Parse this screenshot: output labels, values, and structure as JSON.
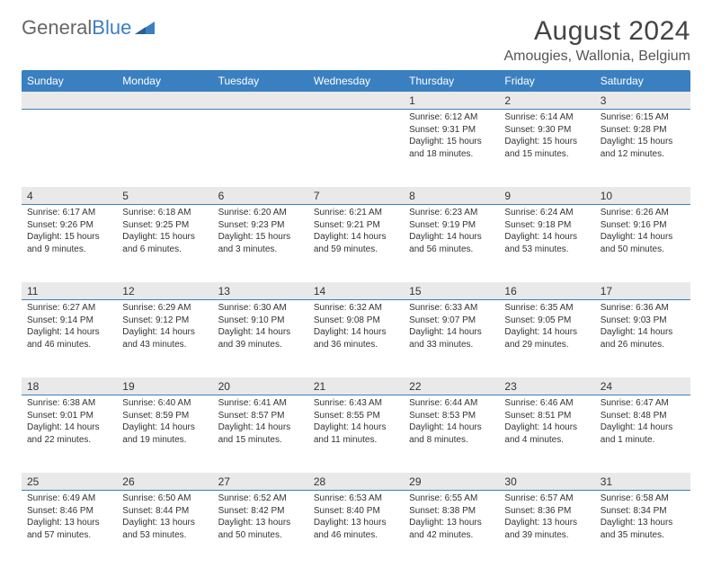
{
  "brand": {
    "general": "General",
    "blue": "Blue"
  },
  "title": "August 2024",
  "location": "Amougies, Wallonia, Belgium",
  "dayNames": [
    "Sunday",
    "Monday",
    "Tuesday",
    "Wednesday",
    "Thursday",
    "Friday",
    "Saturday"
  ],
  "colors": {
    "headerBar": "#3a80c0",
    "dayStripBg": "#e9e9e9",
    "dayStripBorder": "#3a80c0",
    "pageBg": "#ffffff",
    "text": "#333333"
  },
  "weeks": [
    [
      null,
      null,
      null,
      null,
      {
        "n": "1",
        "sunrise": "6:12 AM",
        "sunset": "9:31 PM",
        "daylight": "15 hours and 18 minutes."
      },
      {
        "n": "2",
        "sunrise": "6:14 AM",
        "sunset": "9:30 PM",
        "daylight": "15 hours and 15 minutes."
      },
      {
        "n": "3",
        "sunrise": "6:15 AM",
        "sunset": "9:28 PM",
        "daylight": "15 hours and 12 minutes."
      }
    ],
    [
      {
        "n": "4",
        "sunrise": "6:17 AM",
        "sunset": "9:26 PM",
        "daylight": "15 hours and 9 minutes."
      },
      {
        "n": "5",
        "sunrise": "6:18 AM",
        "sunset": "9:25 PM",
        "daylight": "15 hours and 6 minutes."
      },
      {
        "n": "6",
        "sunrise": "6:20 AM",
        "sunset": "9:23 PM",
        "daylight": "15 hours and 3 minutes."
      },
      {
        "n": "7",
        "sunrise": "6:21 AM",
        "sunset": "9:21 PM",
        "daylight": "14 hours and 59 minutes."
      },
      {
        "n": "8",
        "sunrise": "6:23 AM",
        "sunset": "9:19 PM",
        "daylight": "14 hours and 56 minutes."
      },
      {
        "n": "9",
        "sunrise": "6:24 AM",
        "sunset": "9:18 PM",
        "daylight": "14 hours and 53 minutes."
      },
      {
        "n": "10",
        "sunrise": "6:26 AM",
        "sunset": "9:16 PM",
        "daylight": "14 hours and 50 minutes."
      }
    ],
    [
      {
        "n": "11",
        "sunrise": "6:27 AM",
        "sunset": "9:14 PM",
        "daylight": "14 hours and 46 minutes."
      },
      {
        "n": "12",
        "sunrise": "6:29 AM",
        "sunset": "9:12 PM",
        "daylight": "14 hours and 43 minutes."
      },
      {
        "n": "13",
        "sunrise": "6:30 AM",
        "sunset": "9:10 PM",
        "daylight": "14 hours and 39 minutes."
      },
      {
        "n": "14",
        "sunrise": "6:32 AM",
        "sunset": "9:08 PM",
        "daylight": "14 hours and 36 minutes."
      },
      {
        "n": "15",
        "sunrise": "6:33 AM",
        "sunset": "9:07 PM",
        "daylight": "14 hours and 33 minutes."
      },
      {
        "n": "16",
        "sunrise": "6:35 AM",
        "sunset": "9:05 PM",
        "daylight": "14 hours and 29 minutes."
      },
      {
        "n": "17",
        "sunrise": "6:36 AM",
        "sunset": "9:03 PM",
        "daylight": "14 hours and 26 minutes."
      }
    ],
    [
      {
        "n": "18",
        "sunrise": "6:38 AM",
        "sunset": "9:01 PM",
        "daylight": "14 hours and 22 minutes."
      },
      {
        "n": "19",
        "sunrise": "6:40 AM",
        "sunset": "8:59 PM",
        "daylight": "14 hours and 19 minutes."
      },
      {
        "n": "20",
        "sunrise": "6:41 AM",
        "sunset": "8:57 PM",
        "daylight": "14 hours and 15 minutes."
      },
      {
        "n": "21",
        "sunrise": "6:43 AM",
        "sunset": "8:55 PM",
        "daylight": "14 hours and 11 minutes."
      },
      {
        "n": "22",
        "sunrise": "6:44 AM",
        "sunset": "8:53 PM",
        "daylight": "14 hours and 8 minutes."
      },
      {
        "n": "23",
        "sunrise": "6:46 AM",
        "sunset": "8:51 PM",
        "daylight": "14 hours and 4 minutes."
      },
      {
        "n": "24",
        "sunrise": "6:47 AM",
        "sunset": "8:48 PM",
        "daylight": "14 hours and 1 minute."
      }
    ],
    [
      {
        "n": "25",
        "sunrise": "6:49 AM",
        "sunset": "8:46 PM",
        "daylight": "13 hours and 57 minutes."
      },
      {
        "n": "26",
        "sunrise": "6:50 AM",
        "sunset": "8:44 PM",
        "daylight": "13 hours and 53 minutes."
      },
      {
        "n": "27",
        "sunrise": "6:52 AM",
        "sunset": "8:42 PM",
        "daylight": "13 hours and 50 minutes."
      },
      {
        "n": "28",
        "sunrise": "6:53 AM",
        "sunset": "8:40 PM",
        "daylight": "13 hours and 46 minutes."
      },
      {
        "n": "29",
        "sunrise": "6:55 AM",
        "sunset": "8:38 PM",
        "daylight": "13 hours and 42 minutes."
      },
      {
        "n": "30",
        "sunrise": "6:57 AM",
        "sunset": "8:36 PM",
        "daylight": "13 hours and 39 minutes."
      },
      {
        "n": "31",
        "sunrise": "6:58 AM",
        "sunset": "8:34 PM",
        "daylight": "13 hours and 35 minutes."
      }
    ]
  ],
  "labels": {
    "sunrise": "Sunrise: ",
    "sunset": "Sunset: ",
    "daylight": "Daylight: "
  }
}
